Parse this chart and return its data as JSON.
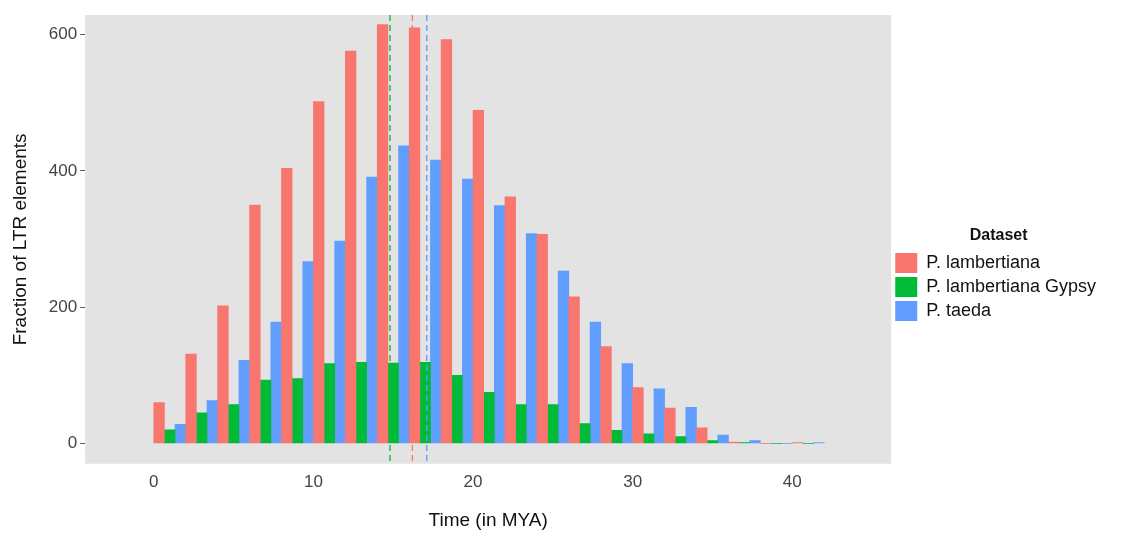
{
  "chart_data": {
    "type": "bar",
    "xlabel": "Time (in MYA)",
    "ylabel": "Fraction of LTR elements",
    "legend_title": "Dataset",
    "legend": "right",
    "x": [
      1,
      3,
      5,
      7,
      9,
      11,
      13,
      15,
      17,
      19,
      21,
      23,
      25,
      27,
      29,
      31,
      33,
      35,
      37,
      39,
      41
    ],
    "series": [
      {
        "name": "P. lambertiana",
        "color": "#f8766d",
        "values": [
          60,
          131,
          202,
          350,
          404,
          502,
          576,
          615,
          610,
          593,
          489,
          362,
          307,
          215,
          142,
          82,
          52,
          23,
          2,
          0,
          1
        ]
      },
      {
        "name": "P. lambertiana Gypsy",
        "color": "#00ba38",
        "values": [
          20,
          45,
          57,
          93,
          95,
          117,
          119,
          118,
          119,
          100,
          75,
          57,
          57,
          29,
          19,
          14,
          10,
          4,
          1,
          0,
          0
        ]
      },
      {
        "name": "P. taeda",
        "color": "#619cff",
        "values": [
          28,
          63,
          122,
          178,
          267,
          297,
          391,
          437,
          416,
          388,
          349,
          308,
          253,
          178,
          117,
          80,
          53,
          12,
          4,
          0,
          1
        ]
      }
    ],
    "xlim": [
      -4.3,
      46.2
    ],
    "xticks": [
      0,
      10,
      20,
      30,
      40
    ],
    "ylim": [
      -30,
      629
    ],
    "yticks": [
      0,
      200,
      400,
      600
    ],
    "grid": false,
    "ref_lines": [
      {
        "axis": "x",
        "value": 14.8,
        "color": "#00ba38",
        "line_style": "dashed"
      },
      {
        "axis": "x",
        "value": 16.2,
        "color": "#f8766d",
        "line_style": "dashed"
      },
      {
        "axis": "x",
        "value": 17.1,
        "color": "#619cff",
        "line_style": "dashed"
      }
    ]
  }
}
